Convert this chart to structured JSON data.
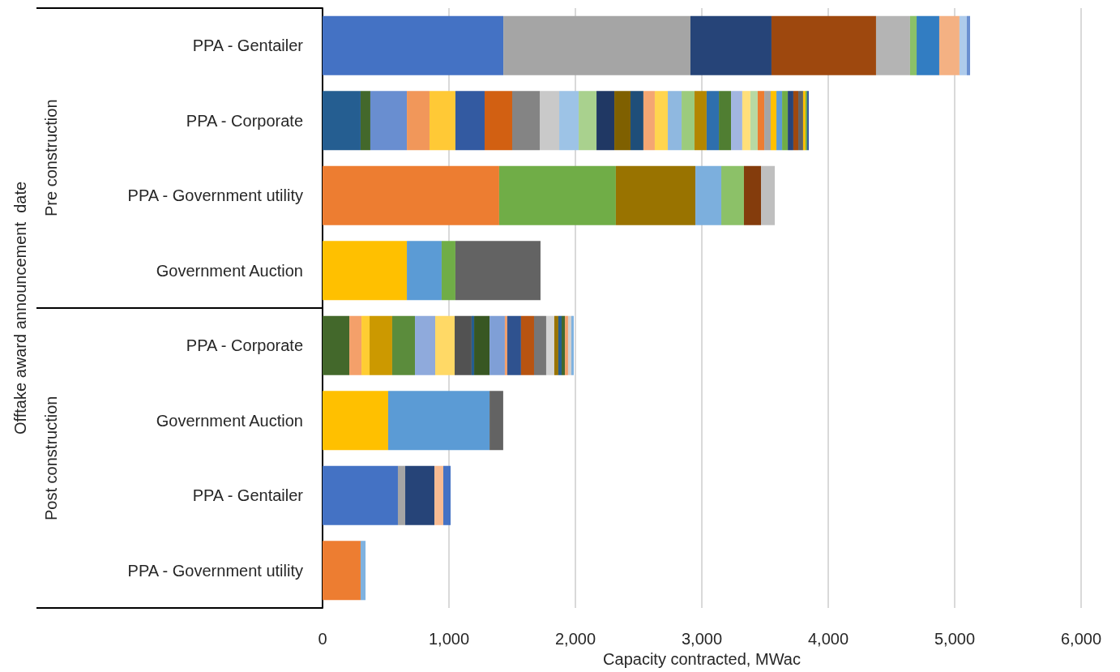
{
  "chart_data": {
    "type": "bar",
    "orientation": "horizontal",
    "stacked": true,
    "grid": "x",
    "xlabel": "Capacity contracted, MWac",
    "annotations": [
      "Offtake award announcement  date",
      "Pre construction",
      "Post construction"
    ],
    "categories": [
      "PPA - Gentailer",
      "PPA - Corporate",
      "PPA - Government utility",
      "Government Auction",
      "PPA - Corporate",
      "Government Auction",
      "PPA - Gentailer",
      "PPA - Government utility"
    ],
    "xlim": [
      0,
      6000
    ],
    "xticks": [
      0,
      {
        "value": 1000,
        "label": "1,000"
      },
      {
        "value": 2000,
        "label": "2,000"
      },
      {
        "value": 3000,
        "label": "3,000"
      },
      {
        "value": 4000,
        "label": "4,000"
      },
      {
        "value": 5000,
        "label": "5,000"
      },
      {
        "value": 6000,
        "label": "6,000"
      }
    ],
    "series": [
      {
        "values": [
          1430,
          301,
          1397,
          667,
          212,
          519,
          596,
          301
        ],
        "colors": [
          "#4472c4",
          "#255e91",
          "#ed7d31",
          "#ffc000",
          "#43682b",
          "#ffc000",
          "#4472c4",
          "#ed7d31"
        ]
      },
      {
        "values": [
          1480,
          77,
          923,
          275,
          96,
          802,
          58,
          39
        ],
        "colors": [
          "#a5a5a5",
          "#43682b",
          "#70ad47",
          "#5b9bd5",
          "#f4a06a",
          "#5b9bd5",
          "#a5a5a5",
          "#7fb2e0"
        ]
      },
      {
        "values": [
          641,
          289,
          629,
          109,
          64,
          108,
          231,
          null
        ],
        "colors": [
          "#264478",
          "#698ed0",
          "#997300",
          "#70ad47",
          "#ffcd33",
          "#636363",
          "#264478",
          null
        ]
      },
      {
        "values": [
          827,
          179,
          205,
          673,
          179,
          null,
          70,
          null
        ],
        "colors": [
          "#9e480e",
          "#f1975a",
          "#7cafdd",
          "#636363",
          "#cc9900",
          null,
          "#f8bb92",
          null
        ]
      },
      {
        "values": [
          269,
          205,
          179,
          null,
          180,
          null,
          58,
          null
        ],
        "colors": [
          "#b4b4b4",
          "#ffc936",
          "#8cc168",
          null,
          "#5b8c3c",
          null,
          "#4472c4",
          null
        ]
      },
      {
        "values": [
          52,
          231,
          135,
          null,
          160,
          null,
          null,
          null
        ],
        "colors": [
          "#8bc168",
          "#335aa1",
          "#843c0c",
          null,
          "#8faadc",
          null,
          null,
          null
        ]
      },
      {
        "values": [
          179,
          218,
          109,
          null,
          154,
          null,
          null,
          null
        ],
        "colors": [
          "#327dc2",
          "#d26012",
          "#bfbfbf",
          null,
          "#ffd966",
          null,
          null,
          null
        ]
      },
      {
        "values": [
          160,
          218,
          null,
          null,
          134,
          null,
          null,
          null
        ],
        "colors": [
          "#f4b183",
          "#848484",
          null,
          null,
          "#525252",
          null,
          null,
          null
        ]
      },
      {
        "values": [
          58,
          154,
          null,
          null,
          20,
          null,
          null,
          null
        ],
        "colors": [
          "#aecbeb",
          "#c9c9c9",
          null,
          null,
          "#255e91",
          null,
          null,
          null
        ]
      },
      {
        "values": [
          26,
          154,
          null,
          null,
          122,
          null,
          null,
          null
        ],
        "colors": [
          "#6a8fd0",
          "#9dc3e6",
          null,
          null,
          "#385723",
          null,
          null,
          null
        ]
      },
      {
        "values": [
          null,
          141,
          null,
          null,
          121,
          null,
          null,
          null
        ],
        "colors": [
          null,
          "#a9d18e",
          null,
          null,
          "#7f9fd6",
          null,
          null,
          null
        ]
      },
      {
        "values": [
          null,
          141,
          null,
          null,
          19,
          null,
          null,
          null
        ],
        "colors": [
          null,
          "#203864",
          null,
          null,
          "#f4a06a",
          null,
          null,
          null
        ]
      },
      {
        "values": [
          null,
          128,
          null,
          null,
          109,
          null,
          null,
          null
        ],
        "colors": [
          null,
          "#7f6000",
          null,
          null,
          "#2f528f",
          null,
          null,
          null
        ]
      },
      {
        "values": [
          null,
          102,
          null,
          null,
          103,
          null,
          null,
          null
        ],
        "colors": [
          null,
          "#1f4e79",
          null,
          null,
          "#b85411",
          null,
          null,
          null
        ]
      },
      {
        "values": [
          null,
          90,
          null,
          null,
          96,
          null,
          null,
          null
        ],
        "colors": [
          null,
          "#f4a672",
          null,
          null,
          "#767676",
          null,
          null,
          null
        ]
      },
      {
        "values": [
          null,
          103,
          null,
          null,
          64,
          null,
          null,
          null
        ],
        "colors": [
          null,
          "#ffd54f",
          null,
          null,
          "#d4d4d4",
          null,
          null,
          null
        ]
      },
      {
        "values": [
          null,
          109,
          null,
          null,
          32,
          null,
          null,
          null
        ],
        "colors": [
          null,
          "#8fb8e0",
          null,
          null,
          "#997300",
          null,
          null,
          null
        ]
      },
      {
        "values": [
          null,
          102,
          null,
          null,
          26,
          null,
          null,
          null
        ],
        "colors": [
          null,
          "#9ccb7d",
          null,
          null,
          "#255e91",
          null,
          null,
          null
        ]
      },
      {
        "values": [
          null,
          96,
          null,
          null,
          26,
          null,
          null,
          null
        ],
        "colors": [
          null,
          "#b38600",
          null,
          null,
          "#43682b",
          null,
          null,
          null
        ]
      },
      {
        "values": [
          null,
          97,
          null,
          null,
          25,
          null,
          null,
          null
        ],
        "colors": [
          null,
          "#2e6fad",
          null,
          null,
          "#f4a06a",
          null,
          null,
          null
        ]
      },
      {
        "values": [
          null,
          96,
          null,
          null,
          26,
          null,
          null,
          null
        ],
        "colors": [
          null,
          "#507e32",
          null,
          null,
          "#d0d0d0",
          null,
          null,
          null
        ]
      },
      {
        "values": [
          null,
          89,
          null,
          null,
          19,
          null,
          null,
          null
        ],
        "colors": [
          null,
          "#a2b6e0",
          null,
          null,
          "#7fb2e0",
          null,
          null,
          null
        ]
      },
      {
        "values": [
          null,
          64,
          null,
          null,
          null,
          null,
          null,
          null
        ],
        "colors": [
          null,
          "#ffdf7a",
          null,
          null,
          null,
          null,
          null,
          null
        ]
      },
      {
        "values": [
          null,
          58,
          null,
          null,
          null,
          null,
          null,
          null
        ],
        "colors": [
          null,
          "#b8d9a3",
          null,
          null,
          null,
          null,
          null,
          null
        ]
      },
      {
        "values": [
          null,
          52,
          null,
          null,
          null,
          null,
          null,
          null
        ],
        "colors": [
          null,
          "#ed7d31",
          null,
          null,
          null,
          null,
          null,
          null
        ]
      },
      {
        "values": [
          null,
          51,
          null,
          null,
          null,
          null,
          null,
          null
        ],
        "colors": [
          null,
          "#a5a5a5",
          null,
          null,
          null,
          null,
          null,
          null
        ]
      },
      {
        "values": [
          null,
          45,
          null,
          null,
          null,
          null,
          null,
          null
        ],
        "colors": [
          null,
          "#ffc000",
          null,
          null,
          null,
          null,
          null,
          null
        ]
      },
      {
        "values": [
          null,
          45,
          null,
          null,
          null,
          null,
          null,
          null
        ],
        "colors": [
          null,
          "#5b9bd5",
          null,
          null,
          null,
          null,
          null,
          null
        ]
      },
      {
        "values": [
          null,
          45,
          null,
          null,
          null,
          null,
          null,
          null
        ],
        "colors": [
          null,
          "#70ad47",
          null,
          null,
          null,
          null,
          null,
          null
        ]
      },
      {
        "values": [
          null,
          44,
          null,
          null,
          null,
          null,
          null,
          null
        ],
        "colors": [
          null,
          "#264478",
          null,
          null,
          null,
          null,
          null,
          null
        ]
      },
      {
        "values": [
          null,
          39,
          null,
          null,
          null,
          null,
          null,
          null
        ],
        "colors": [
          null,
          "#9e480e",
          null,
          null,
          null,
          null,
          null,
          null
        ]
      },
      {
        "values": [
          null,
          38,
          null,
          null,
          null,
          null,
          null,
          null
        ],
        "colors": [
          null,
          "#636363",
          null,
          null,
          null,
          null,
          null,
          null
        ]
      },
      {
        "values": [
          null,
          19,
          null,
          null,
          null,
          null,
          null,
          null
        ],
        "colors": [
          null,
          "#ffc000",
          null,
          null,
          null,
          null,
          null,
          null
        ]
      },
      {
        "values": [
          null,
          13,
          null,
          null,
          null,
          null,
          null,
          null
        ],
        "colors": [
          null,
          "#70ad47",
          null,
          null,
          null,
          null,
          null,
          null
        ]
      },
      {
        "values": [
          null,
          13,
          null,
          null,
          null,
          null,
          null,
          null
        ],
        "colors": [
          null,
          "#325aa0",
          null,
          null,
          null,
          null,
          null,
          null
        ]
      }
    ]
  }
}
